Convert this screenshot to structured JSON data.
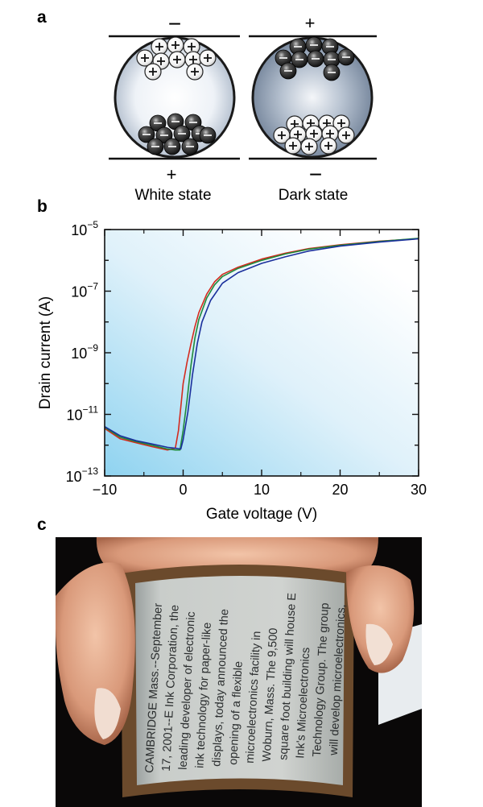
{
  "panel_a": {
    "label": "a",
    "white_state": {
      "top_sign": "−",
      "bottom_sign": "+",
      "caption": "White state"
    },
    "dark_state": {
      "top_sign": "+",
      "bottom_sign": "−",
      "caption": "Dark state"
    },
    "colors": {
      "white_particle": "#f4f4f4",
      "black_particle": "#2b2b2b",
      "capsule_light": "#ffffff",
      "capsule_dark": "#7f90a8"
    }
  },
  "panel_b": {
    "label": "b",
    "background_gradient": {
      "from": "#8fd3f0",
      "to": "#ffffff"
    }
  },
  "panel_c": {
    "label": "c",
    "photo_text_lines": [
      "CAMBRIDGE Mass.--September",
      "17, 2001--E Ink Corporation, the",
      "leading developer of electronic",
      "ink technology for paper-like",
      "displays, today announced the",
      "opening of a flexible",
      "microelectronics facility in",
      "Woburn, Mass. The 9,500",
      "square foot building will house E",
      "Ink's Microelectronics",
      "Technology Group. The group",
      "will develop microelectronics,"
    ],
    "colors": {
      "background": "#0a0808",
      "skin": "#e2aa8c",
      "screen": "#c7cbc8",
      "foil": "#b87840"
    }
  },
  "chart_data": {
    "type": "line",
    "title": "",
    "xlabel": "Gate voltage (V)",
    "ylabel": "Drain current (A)",
    "xlim": [
      -10,
      30
    ],
    "ylim_log10": [
      -13,
      -5
    ],
    "y_scale": "log",
    "x_ticks": [
      -10,
      0,
      10,
      20,
      30
    ],
    "x_tick_labels": [
      "−10",
      "0",
      "10",
      "20",
      "30"
    ],
    "y_ticks_log10": [
      -13,
      -11,
      -9,
      -7,
      -5
    ],
    "y_tick_labels": [
      {
        "base": "10",
        "exp": "−13"
      },
      {
        "base": "10",
        "exp": "−11"
      },
      {
        "base": "10",
        "exp": "−9"
      },
      {
        "base": "10",
        "exp": "−7"
      },
      {
        "base": "10",
        "exp": "−5"
      }
    ],
    "grid": false,
    "series": [
      {
        "color": "#d42a1e",
        "x": [
          -10,
          -8,
          -6,
          -4,
          -2,
          -1,
          -0.6,
          0,
          0.5,
          1,
          1.5,
          2,
          3,
          4,
          5,
          7,
          10,
          13,
          16,
          20,
          25,
          30
        ],
        "y": [
          3.5e-12,
          1.6e-12,
          1.2e-12,
          9e-13,
          7e-13,
          8e-13,
          3e-12,
          1e-10,
          5e-10,
          2e-09,
          7e-09,
          2e-08,
          8e-08,
          2e-07,
          3.5e-07,
          6e-07,
          1.1e-06,
          1.7e-06,
          2.4e-06,
          3.2e-06,
          4.2e-06,
          5e-06
        ]
      },
      {
        "color": "#1f8a3a",
        "x": [
          -10,
          -8,
          -6,
          -4,
          -2,
          -1,
          -0.4,
          0,
          0.5,
          1,
          1.5,
          2,
          3,
          4,
          5,
          7,
          10,
          13,
          16,
          20,
          25,
          30
        ],
        "y": [
          3.8e-12,
          1.8e-12,
          1.3e-12,
          1e-12,
          7.5e-13,
          7e-13,
          7e-13,
          3e-12,
          3e-11,
          4e-10,
          3e-09,
          1.2e-08,
          6e-08,
          1.6e-07,
          3e-07,
          5.5e-07,
          1e-06,
          1.6e-06,
          2.3e-06,
          3.1e-06,
          4.1e-06,
          5.2e-06
        ]
      },
      {
        "color": "#1a2f9c",
        "x": [
          -10,
          -8,
          -6,
          -4,
          -2,
          -1,
          -0.3,
          0,
          0.6,
          1.2,
          1.8,
          2.4,
          3.5,
          5,
          7,
          10,
          13,
          16,
          20,
          25,
          30
        ],
        "y": [
          4e-12,
          2e-12,
          1.4e-12,
          1.1e-12,
          8.5e-13,
          8e-13,
          7.5e-13,
          1.5e-12,
          1.2e-11,
          2e-10,
          2e-09,
          1e-08,
          5e-08,
          1.8e-07,
          4e-07,
          8e-07,
          1.3e-06,
          2e-06,
          2.9e-06,
          3.9e-06,
          5e-06
        ]
      }
    ]
  }
}
